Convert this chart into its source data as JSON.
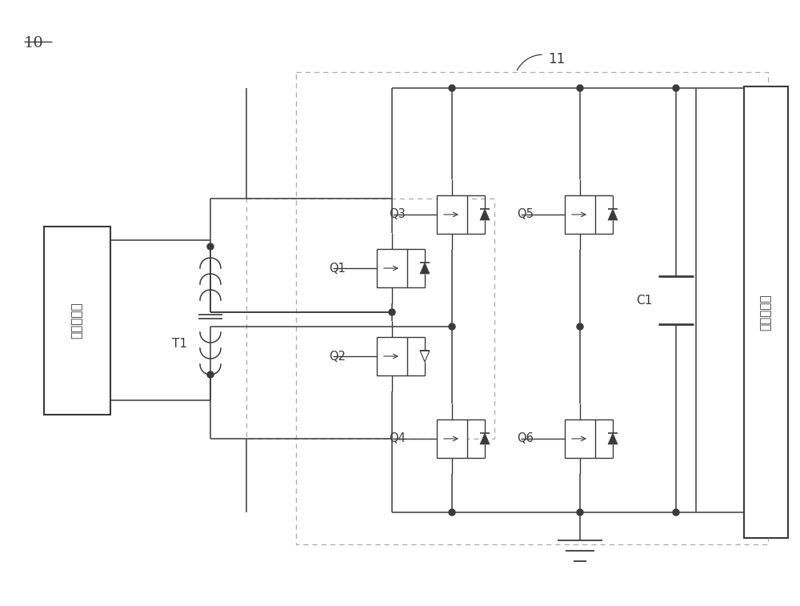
{
  "bg_color": "#ffffff",
  "lc": "#3a3a3a",
  "dc": "#aaaaaa",
  "label_10": "10",
  "label_11": "11",
  "label_T1": "T1",
  "label_Q1": "Q1",
  "label_Q2": "Q2",
  "label_Q3": "Q3",
  "label_Q4": "Q4",
  "label_Q5": "Q5",
  "label_Q6": "Q6",
  "label_C1": "C1",
  "label_conn1": "第一连接端",
  "label_conn2": "第二连接端",
  "figsize": [
    10.0,
    7.57
  ],
  "dpi": 100,
  "xlim": [
    0,
    1000
  ],
  "ylim": [
    0,
    757
  ]
}
